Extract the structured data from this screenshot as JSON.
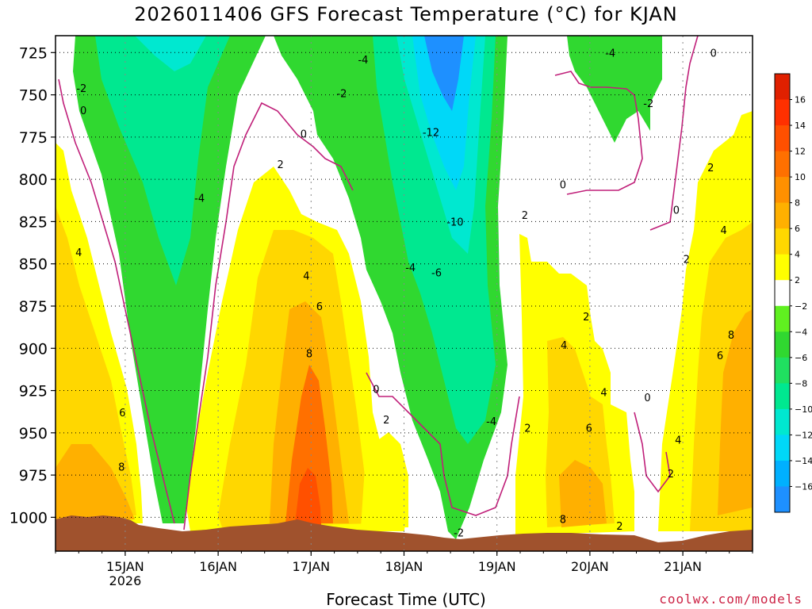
{
  "chart_data": {
    "type": "heatmap",
    "title": "2026011406 GFS Forecast Temperature (°C) for KJAN",
    "xlabel": "Forecast Time (UTC)",
    "ylabel": "",
    "y_axis": {
      "ticks": [
        725,
        750,
        775,
        800,
        825,
        850,
        875,
        900,
        925,
        950,
        975,
        1000
      ],
      "range_top": 715,
      "range_bottom": 1020,
      "inverted": true
    },
    "x_axis": {
      "ticks": [
        {
          "day": 15,
          "label": "15JAN",
          "sub": "2026"
        },
        {
          "day": 16,
          "label": "16JAN",
          "sub": ""
        },
        {
          "day": 17,
          "label": "17JAN",
          "sub": ""
        },
        {
          "day": 18,
          "label": "18JAN",
          "sub": ""
        },
        {
          "day": 19,
          "label": "19JAN",
          "sub": ""
        },
        {
          "day": 20,
          "label": "20JAN",
          "sub": ""
        },
        {
          "day": 21,
          "label": "21JAN",
          "sub": ""
        }
      ],
      "range_start_day": 14.25,
      "range_end_day": 21.75
    },
    "colorbar": {
      "levels": [
        -16,
        -14,
        -12,
        -10,
        -8,
        -6,
        -4,
        -2,
        2,
        4,
        6,
        8,
        10,
        12,
        14,
        16
      ],
      "colors": [
        "#1e90ff",
        "#00b0ff",
        "#00d8f8",
        "#00e8d0",
        "#00e890",
        "#20e060",
        "#30d830",
        "#60f020",
        "#ffffff",
        "#ffff00",
        "#ffd700",
        "#ffb000",
        "#ff9000",
        "#ff7000",
        "#ff5000",
        "#ff3000",
        "#e02000"
      ]
    },
    "contour_labels": [
      {
        "text": "-2",
        "day": 14.53,
        "p": 746
      },
      {
        "text": "0",
        "day": 14.55,
        "p": 759
      },
      {
        "text": "4",
        "day": 14.5,
        "p": 843
      },
      {
        "text": "6",
        "day": 14.97,
        "p": 938
      },
      {
        "text": "8",
        "day": 14.96,
        "p": 970
      },
      {
        "text": "-4",
        "day": 15.8,
        "p": 811
      },
      {
        "text": "2",
        "day": 16.67,
        "p": 791
      },
      {
        "text": "0",
        "day": 16.92,
        "p": 773
      },
      {
        "text": "4",
        "day": 16.95,
        "p": 857
      },
      {
        "text": "6",
        "day": 17.09,
        "p": 875
      },
      {
        "text": "8",
        "day": 16.98,
        "p": 903
      },
      {
        "text": "-2",
        "day": 17.33,
        "p": 749
      },
      {
        "text": "-4",
        "day": 17.56,
        "p": 729
      },
      {
        "text": "-12",
        "day": 18.29,
        "p": 772
      },
      {
        "text": "-10",
        "day": 18.55,
        "p": 825
      },
      {
        "text": "-4",
        "day": 18.07,
        "p": 852
      },
      {
        "text": "-6",
        "day": 18.35,
        "p": 855
      },
      {
        "text": "0",
        "day": 17.7,
        "p": 924
      },
      {
        "text": "2",
        "day": 17.81,
        "p": 942
      },
      {
        "text": "-4",
        "day": 18.94,
        "p": 943
      },
      {
        "text": "-2",
        "day": 18.59,
        "p": 1009
      },
      {
        "text": "2",
        "day": 19.3,
        "p": 821
      },
      {
        "text": "2",
        "day": 19.33,
        "p": 947
      },
      {
        "text": "2",
        "day": 19.96,
        "p": 881
      },
      {
        "text": "4",
        "day": 19.72,
        "p": 898
      },
      {
        "text": "4",
        "day": 20.15,
        "p": 926
      },
      {
        "text": "6",
        "day": 19.99,
        "p": 947
      },
      {
        "text": "8",
        "day": 19.71,
        "p": 1001
      },
      {
        "text": "2",
        "day": 20.32,
        "p": 1005
      },
      {
        "text": "0",
        "day": 20.62,
        "p": 929
      },
      {
        "text": "-4",
        "day": 20.22,
        "p": 725
      },
      {
        "text": "-2",
        "day": 20.63,
        "p": 755
      },
      {
        "text": "0",
        "day": 19.71,
        "p": 803
      },
      {
        "text": "0",
        "day": 20.93,
        "p": 818
      },
      {
        "text": "0",
        "day": 21.33,
        "p": 725
      },
      {
        "text": "2",
        "day": 21.3,
        "p": 793
      },
      {
        "text": "4",
        "day": 21.44,
        "p": 830
      },
      {
        "text": "2",
        "day": 21.04,
        "p": 847
      },
      {
        "text": "8",
        "day": 21.52,
        "p": 892
      },
      {
        "text": "6",
        "day": 21.4,
        "p": 904
      },
      {
        "text": "4",
        "day": 20.95,
        "p": 954
      },
      {
        "text": "2",
        "day": 20.87,
        "p": 974
      }
    ]
  },
  "credit": "coolwx.com/models"
}
